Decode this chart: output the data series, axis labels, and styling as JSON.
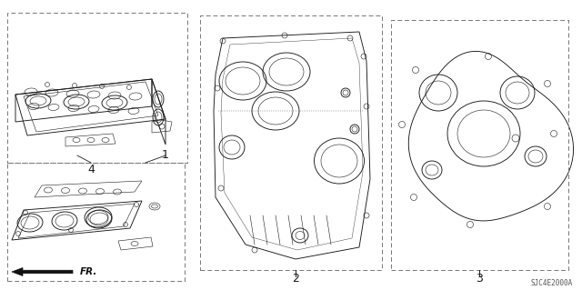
{
  "background_color": "#ffffff",
  "diagram_code": "SJC4E2000A",
  "line_color": "#1a1a1a",
  "dashed_color": "#777777",
  "lw_main": 0.65,
  "lw_thin": 0.4,
  "figsize": [
    6.4,
    3.19
  ],
  "dpi": 100
}
